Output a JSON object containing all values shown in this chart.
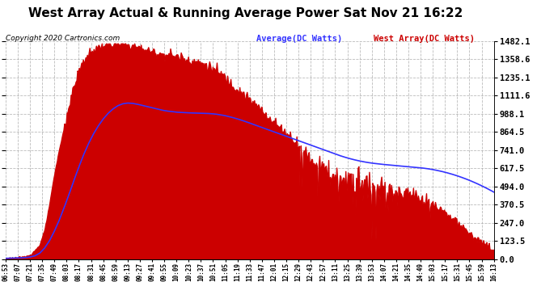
{
  "title": "West Array Actual & Running Average Power Sat Nov 21 16:22",
  "copyright": "Copyright 2020 Cartronics.com",
  "legend_avg": "Average(DC Watts)",
  "legend_west": "West Array(DC Watts)",
  "ymin": 0.0,
  "ymax": 1482.1,
  "yticks": [
    0.0,
    123.5,
    247.0,
    370.5,
    494.0,
    617.5,
    741.0,
    864.5,
    988.1,
    1111.6,
    1235.1,
    1358.6,
    1482.1
  ],
  "background_color": "#ffffff",
  "fill_color": "#cc0000",
  "avg_line_color": "#3333ff",
  "grid_color": "#aaaaaa",
  "xtick_labels": [
    "06:53",
    "07:07",
    "07:21",
    "07:35",
    "07:49",
    "08:03",
    "08:17",
    "08:31",
    "08:45",
    "08:59",
    "09:13",
    "09:27",
    "09:41",
    "09:55",
    "10:09",
    "10:23",
    "10:37",
    "10:51",
    "11:05",
    "11:19",
    "11:33",
    "11:47",
    "12:01",
    "12:15",
    "12:29",
    "12:43",
    "12:57",
    "13:11",
    "13:25",
    "13:39",
    "13:53",
    "14:07",
    "14:21",
    "14:35",
    "14:49",
    "15:03",
    "15:17",
    "15:31",
    "15:45",
    "15:59",
    "16:13"
  ],
  "west_array": [
    5,
    8,
    10,
    12,
    18,
    30,
    60,
    100,
    200,
    380,
    580,
    750,
    900,
    1050,
    1180,
    1280,
    1350,
    1390,
    1420,
    1440,
    1450,
    1455,
    1460,
    1462,
    1460,
    1455,
    1450,
    1440,
    1430,
    1420,
    1410,
    1400,
    1395,
    1390,
    1385,
    1380,
    1370,
    1360,
    1350,
    1340,
    1330,
    1320,
    1300,
    1280,
    1260,
    1230,
    1200,
    1170,
    1140,
    1110,
    1080,
    1050,
    1020,
    990,
    960,
    930,
    900,
    870,
    840,
    810,
    780,
    750,
    720,
    690,
    660,
    640,
    620,
    600,
    590,
    580,
    570,
    560,
    550,
    540,
    530,
    520,
    510,
    500,
    490,
    480,
    470,
    460,
    450,
    440,
    430,
    420,
    400,
    380,
    360,
    340,
    320,
    290,
    260,
    230,
    200,
    175,
    150,
    125,
    100,
    80,
    60
  ],
  "avg_line": [
    5,
    6,
    7,
    8,
    10,
    14,
    22,
    40,
    75,
    125,
    190,
    265,
    350,
    440,
    535,
    625,
    710,
    785,
    850,
    905,
    952,
    990,
    1020,
    1042,
    1055,
    1060,
    1058,
    1052,
    1044,
    1036,
    1028,
    1020,
    1012,
    1006,
    1002,
    998,
    996,
    994,
    993,
    992,
    991,
    990,
    988,
    985,
    980,
    974,
    966,
    957,
    947,
    936,
    924,
    912,
    900,
    888,
    876,
    864,
    852,
    840,
    828,
    816,
    804,
    792,
    780,
    768,
    756,
    744,
    732,
    720,
    708,
    697,
    687,
    678,
    670,
    663,
    657,
    652,
    648,
    644,
    641,
    638,
    635,
    632,
    629,
    626,
    623,
    620,
    616,
    611,
    605,
    598,
    590,
    581,
    571,
    560,
    548,
    535,
    521,
    506,
    490,
    473,
    455
  ]
}
